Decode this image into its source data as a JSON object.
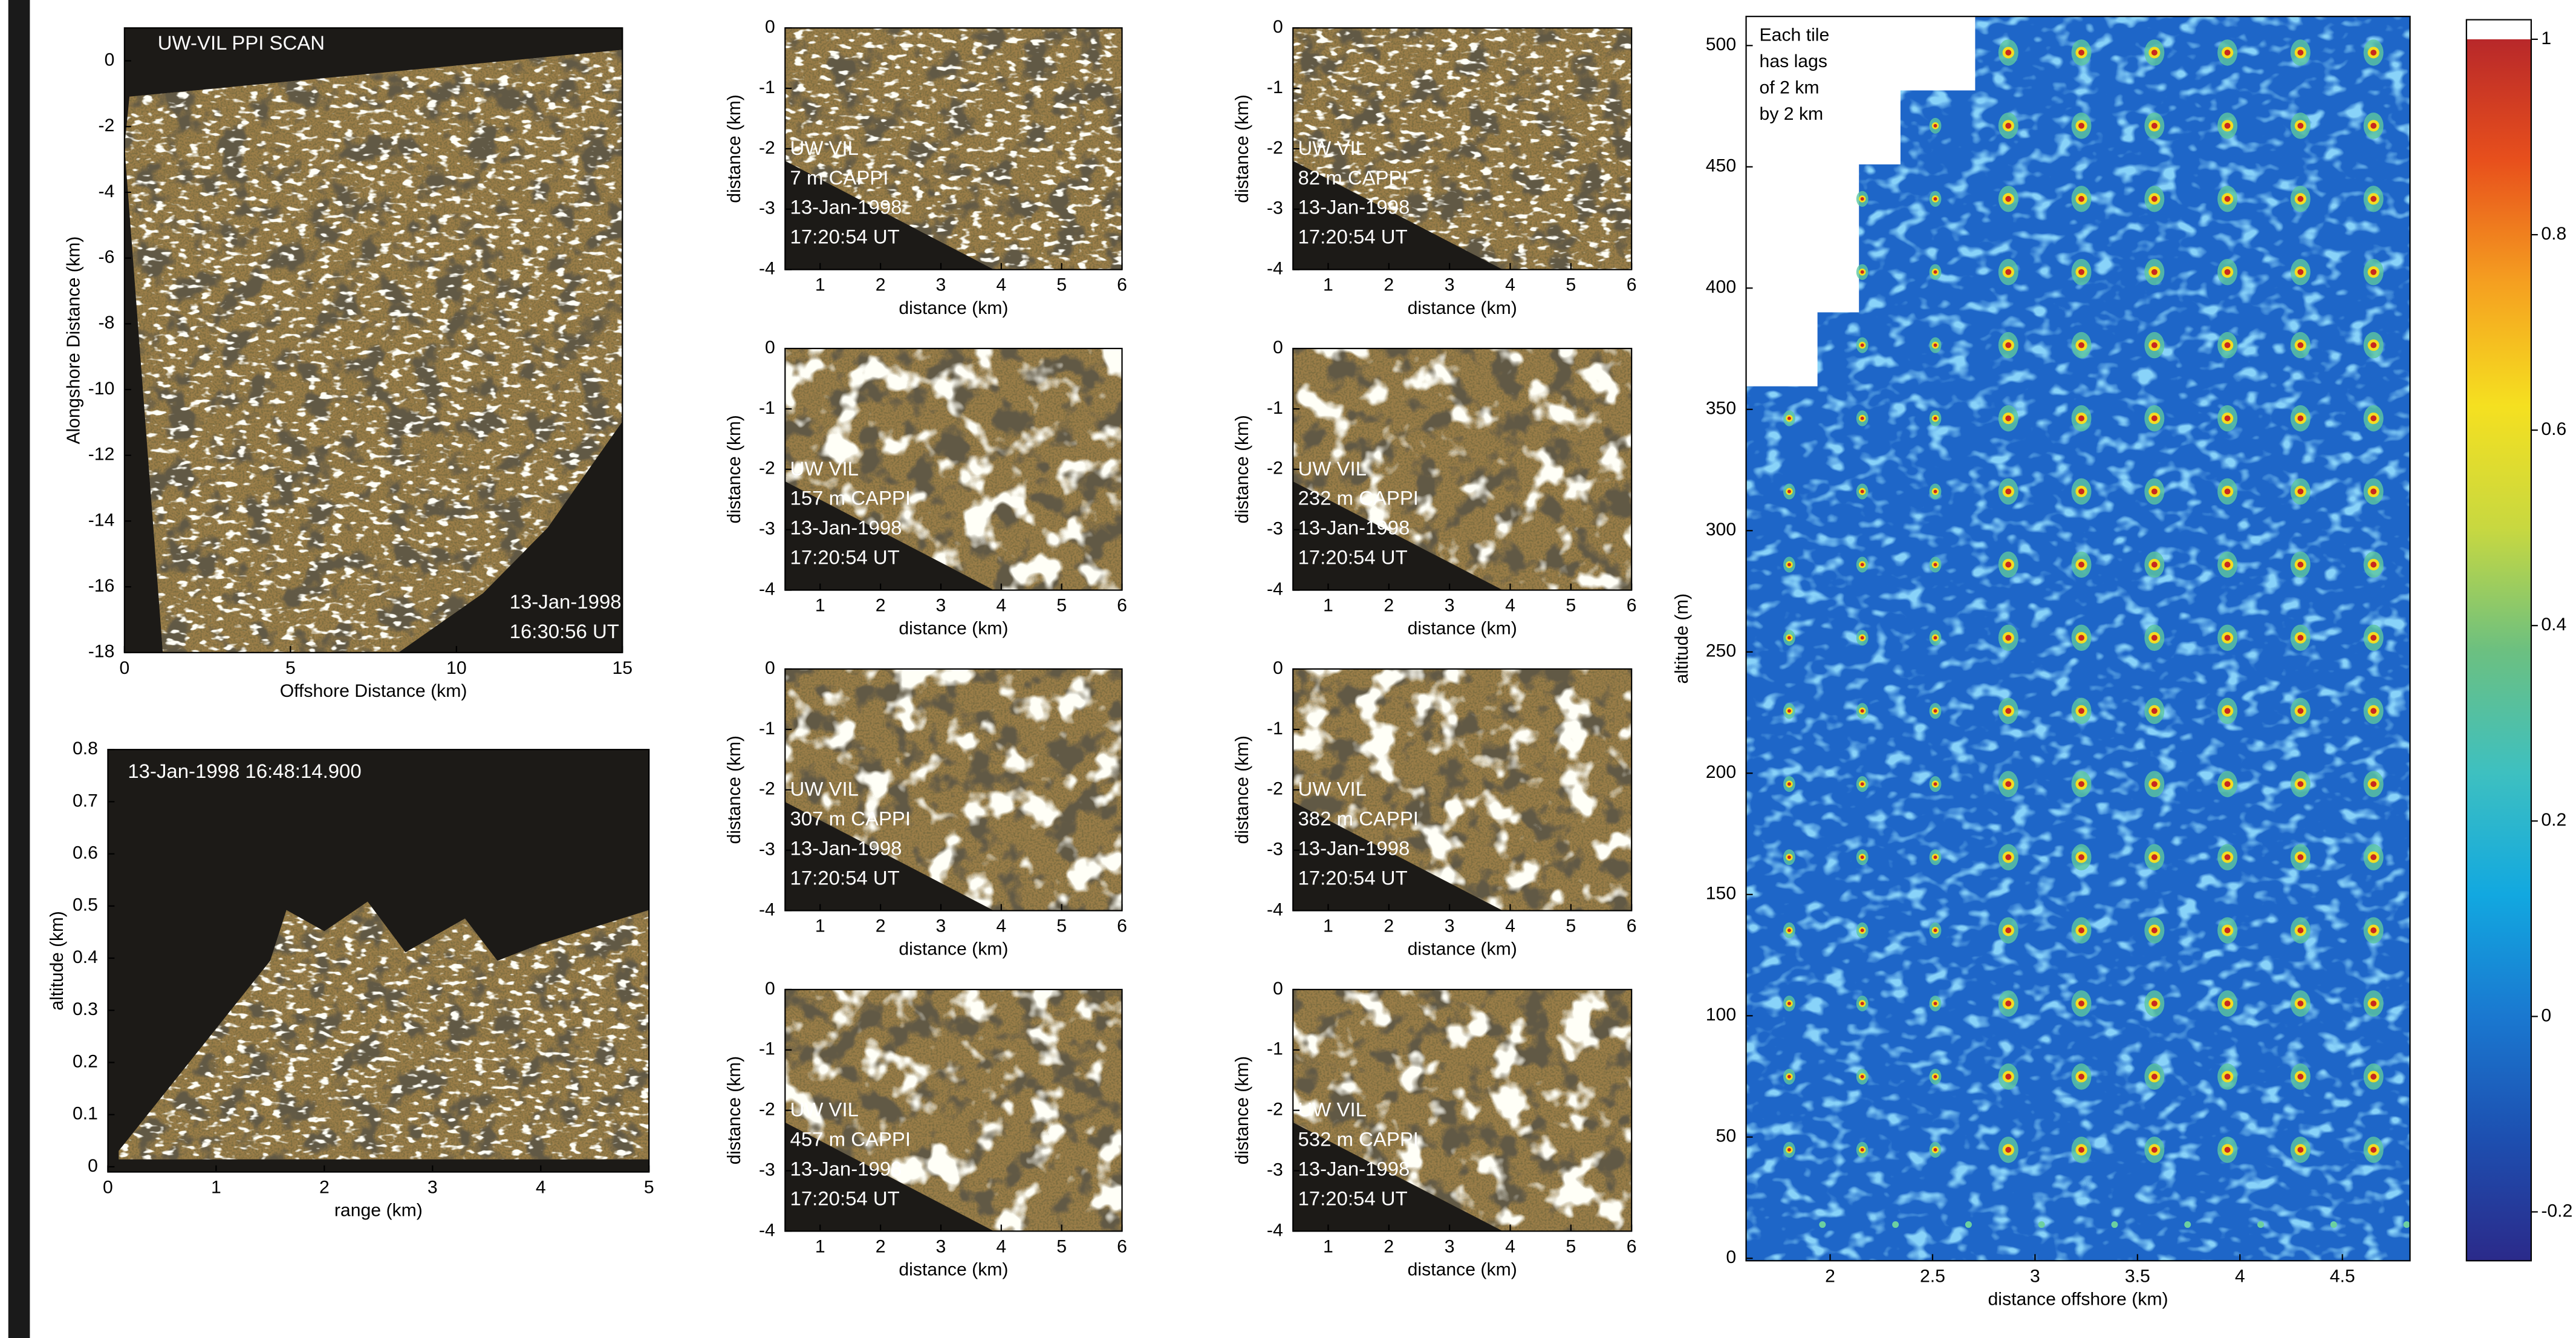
{
  "chart_data": [
    {
      "type": "image",
      "annotations": [
        "UW-VIL PPI SCAN",
        "13-Jan-1998",
        "16:30:56 UT"
      ],
      "x_label": "Offshore Distance (km)",
      "y_label": "Alongshore Distance (km)",
      "xlim": [
        0,
        15
      ],
      "xticks": [
        0,
        5,
        10,
        15
      ],
      "ylim": [
        -18,
        1
      ],
      "yticks": [
        -18,
        -16,
        -14,
        -12,
        -10,
        -8,
        -6,
        -4,
        -2,
        0
      ]
    },
    {
      "type": "image",
      "annotations": [
        "13-Jan-1998 16:48:14.900"
      ],
      "x_label": "range (km)",
      "y_label": "altitude (km)",
      "xlim": [
        0,
        5
      ],
      "xticks": [
        0,
        1,
        2,
        3,
        4,
        5
      ],
      "ylim": [
        -0.01,
        0.8
      ],
      "yticks": [
        0,
        0.1,
        0.2,
        0.3,
        0.4,
        0.5,
        0.6,
        0.7,
        0.8
      ]
    },
    {
      "type": "image",
      "annotations": [
        "UW VIL",
        "7 m CAPPI",
        "13-Jan-1998",
        "17:20:54 UT"
      ],
      "x_label": "distance (km)",
      "y_label": "distance (km)",
      "xlim": [
        0.42,
        6
      ],
      "xticks": [
        1,
        2,
        3,
        4,
        5,
        6
      ],
      "ylim": [
        -4,
        0
      ],
      "yticks": [
        0,
        -1,
        -2,
        -3,
        -4
      ]
    },
    {
      "type": "image",
      "annotations": [
        "UW VIL",
        "82 m CAPPI",
        "13-Jan-1998",
        "17:20:54 UT"
      ],
      "x_label": "distance (km)",
      "y_label": "distance (km)",
      "xlim": [
        0.42,
        6
      ],
      "xticks": [
        1,
        2,
        3,
        4,
        5,
        6
      ],
      "ylim": [
        -4,
        0
      ],
      "yticks": [
        0,
        -1,
        -2,
        -3,
        -4
      ]
    },
    {
      "type": "image",
      "annotations": [
        "UW VIL",
        "157 m CAPPI",
        "13-Jan-1998",
        "17:20:54 UT"
      ],
      "x_label": "distance (km)",
      "y_label": "distance (km)",
      "xlim": [
        0.42,
        6
      ],
      "xticks": [
        1,
        2,
        3,
        4,
        5,
        6
      ],
      "ylim": [
        -4,
        0
      ],
      "yticks": [
        0,
        -1,
        -2,
        -3,
        -4
      ]
    },
    {
      "type": "image",
      "annotations": [
        "UW VIL",
        "232 m CAPPI",
        "13-Jan-1998",
        "17:20:54 UT"
      ],
      "x_label": "distance (km)",
      "y_label": "distance (km)",
      "xlim": [
        0.42,
        6
      ],
      "xticks": [
        1,
        2,
        3,
        4,
        5,
        6
      ],
      "ylim": [
        -4,
        0
      ],
      "yticks": [
        0,
        -1,
        -2,
        -3,
        -4
      ]
    },
    {
      "type": "image",
      "annotations": [
        "UW VIL",
        "307 m CAPPI",
        "13-Jan-1998",
        "17:20:54 UT"
      ],
      "x_label": "distance (km)",
      "y_label": "distance (km)",
      "xlim": [
        0.42,
        6
      ],
      "xticks": [
        1,
        2,
        3,
        4,
        5,
        6
      ],
      "ylim": [
        -4,
        0
      ],
      "yticks": [
        0,
        -1,
        -2,
        -3,
        -4
      ]
    },
    {
      "type": "image",
      "annotations": [
        "UW VIL",
        "382 m CAPPI",
        "13-Jan-1998",
        "17:20:54 UT"
      ],
      "x_label": "distance (km)",
      "y_label": "distance (km)",
      "xlim": [
        0.42,
        6
      ],
      "xticks": [
        1,
        2,
        3,
        4,
        5,
        6
      ],
      "ylim": [
        -4,
        0
      ],
      "yticks": [
        0,
        -1,
        -2,
        -3,
        -4
      ]
    },
    {
      "type": "image",
      "annotations": [
        "UW VIL",
        "457 m CAPPI",
        "13-Jan-1998",
        "17:20:54 UT"
      ],
      "x_label": "distance (km)",
      "y_label": "distance (km)",
      "xlim": [
        0.42,
        6
      ],
      "xticks": [
        1,
        2,
        3,
        4,
        5,
        6
      ],
      "ylim": [
        -4,
        0
      ],
      "yticks": [
        0,
        -1,
        -2,
        -3,
        -4
      ]
    },
    {
      "type": "image",
      "annotations": [
        "UW VIL",
        "532 m CAPPI",
        "13-Jan-1998",
        "17:20:54 UT"
      ],
      "x_label": "distance (km)",
      "y_label": "distance (km)",
      "xlim": [
        0.42,
        6
      ],
      "xticks": [
        1,
        2,
        3,
        4,
        5,
        6
      ],
      "ylim": [
        -4,
        0
      ],
      "yticks": [
        0,
        -1,
        -2,
        -3,
        -4
      ]
    },
    {
      "type": "heatmap",
      "annotations": [
        "Each tile",
        "has lags",
        "of 2 km",
        "by 2 km"
      ],
      "x_label": "distance offshore (km)",
      "y_label": "altitude (m)",
      "xlim": [
        1.59,
        4.83
      ],
      "xticks": [
        2,
        2.5,
        3,
        3.5,
        4,
        4.5
      ],
      "ylim": [
        -1,
        512
      ],
      "yticks": [
        0,
        50,
        100,
        150,
        200,
        250,
        300,
        350,
        400,
        450,
        500
      ]
    },
    {
      "type": "colorbar",
      "colormap": [
        "#2b2a8a",
        "#1d4fb0",
        "#1a78d0",
        "#12a8e0",
        "#3ec0c0",
        "#6cc080",
        "#c8d840",
        "#f5e020",
        "#f5a020",
        "#e8501c",
        "#b8282a",
        "#ffffff"
      ],
      "ylim": [
        -0.25,
        1.02
      ],
      "yticks": [
        -0.2,
        0,
        0.2,
        0.4,
        0.6,
        0.8,
        1
      ]
    }
  ]
}
